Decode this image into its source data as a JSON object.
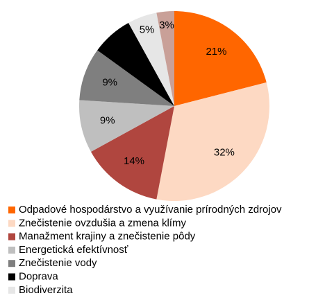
{
  "chart_data": {
    "type": "pie",
    "categories": [
      "Odpadové hospodárstvo a využívanie prírodných zdrojov",
      "Znečistenie ovzdušia a zmena klímy",
      "Manažment krajiny a znečistenie pôdy",
      "Energetická efektívnosť",
      "Znečistenie vody",
      "Doprava",
      "Biodiverzita",
      null
    ],
    "values": [
      21,
      32,
      14,
      9,
      9,
      7,
      5,
      3
    ],
    "value_labels": [
      "21%",
      "32%",
      "14%",
      "9%",
      "9%",
      null,
      "5%",
      "3%"
    ],
    "colors": [
      "#ff6600",
      "#fdd9c3",
      "#b0463f",
      "#bfbfbf",
      "#7f7f7f",
      "#000000",
      "#e6e6e6",
      "#c9a098"
    ]
  }
}
